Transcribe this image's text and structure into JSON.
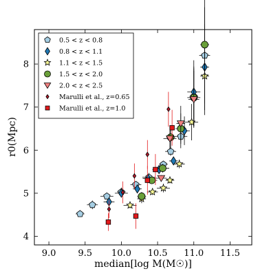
{
  "chart_data": {
    "type": "scatter",
    "xlabel": "median[log M(M☉)]",
    "ylabel": "r0(Mpc)",
    "xlim": [
      8.8,
      11.8
    ],
    "ylim": [
      3.8,
      8.8
    ],
    "xticks": [
      "9.0",
      "9.5",
      "10.0",
      "10.5",
      "11.0",
      "11.5"
    ],
    "yticks": [
      "4",
      "5",
      "6",
      "7",
      "8"
    ],
    "legend_position": "top-left",
    "series": [
      {
        "name": "0.5 < z < 0.8",
        "marker": "pentagon",
        "color": "#a6cee3",
        "points": [
          [
            9.43,
            4.52
          ],
          [
            9.6,
            4.73
          ],
          [
            9.8,
            4.93
          ],
          [
            10.0,
            5.03
          ],
          [
            10.2,
            5.2
          ],
          [
            10.38,
            5.37
          ],
          [
            10.58,
            5.67
          ],
          [
            10.68,
            5.97
          ],
          [
            10.82,
            6.32
          ],
          [
            11.0,
            7.25
          ],
          [
            11.15,
            8.2
          ]
        ]
      },
      {
        "name": "0.8 < z < 1.1",
        "marker": "diamond",
        "color": "#1f78b4",
        "points": [
          [
            9.83,
            4.8
          ],
          [
            10.0,
            5.0
          ],
          [
            10.22,
            5.1
          ],
          [
            10.37,
            5.34
          ],
          [
            10.52,
            5.55
          ],
          [
            10.72,
            5.75
          ],
          [
            10.87,
            6.45
          ],
          [
            11.0,
            7.35
          ],
          [
            11.15,
            7.93
          ]
        ]
      },
      {
        "name": "1.1 < z < 1.5",
        "marker": "star",
        "color": "#ffff99",
        "points": [
          [
            10.12,
            4.72
          ],
          [
            10.28,
            4.87
          ],
          [
            10.43,
            5.03
          ],
          [
            10.58,
            5.12
          ],
          [
            10.67,
            5.3
          ],
          [
            10.8,
            5.68
          ],
          [
            10.97,
            6.65
          ],
          [
            11.15,
            7.72
          ]
        ]
      },
      {
        "name": "1.5 < z < 2.0",
        "marker": "circle",
        "color": "#6a9f3a",
        "points": [
          [
            10.28,
            4.93
          ],
          [
            10.42,
            5.3
          ],
          [
            10.57,
            5.58
          ],
          [
            10.68,
            6.3
          ],
          [
            10.82,
            6.5
          ],
          [
            11.0,
            7.22
          ],
          [
            11.15,
            8.45
          ]
        ]
      },
      {
        "name": "2.0 < z < 2.5",
        "marker": "triangle-down",
        "color": "#f08080",
        "points": [
          [
            10.55,
            5.35
          ],
          [
            10.67,
            6.27
          ],
          [
            10.82,
            6.62
          ],
          [
            11.0,
            7.18
          ]
        ]
      },
      {
        "name": "Marulli et al., z=0.65",
        "marker": "small-diamond",
        "color": "#b2182b",
        "points": [
          [
            9.83,
            4.63
          ],
          [
            10.02,
            5.02
          ],
          [
            10.18,
            5.4
          ],
          [
            10.36,
            5.9
          ],
          [
            10.65,
            6.95
          ]
        ]
      },
      {
        "name": "Marulli et al., z=1.0",
        "marker": "square",
        "color": "#e31a1c",
        "points": [
          [
            9.82,
            4.33
          ],
          [
            10.2,
            4.47
          ],
          [
            10.36,
            5.3
          ],
          [
            10.47,
            5.55
          ],
          [
            10.7,
            6.52
          ]
        ]
      }
    ]
  }
}
